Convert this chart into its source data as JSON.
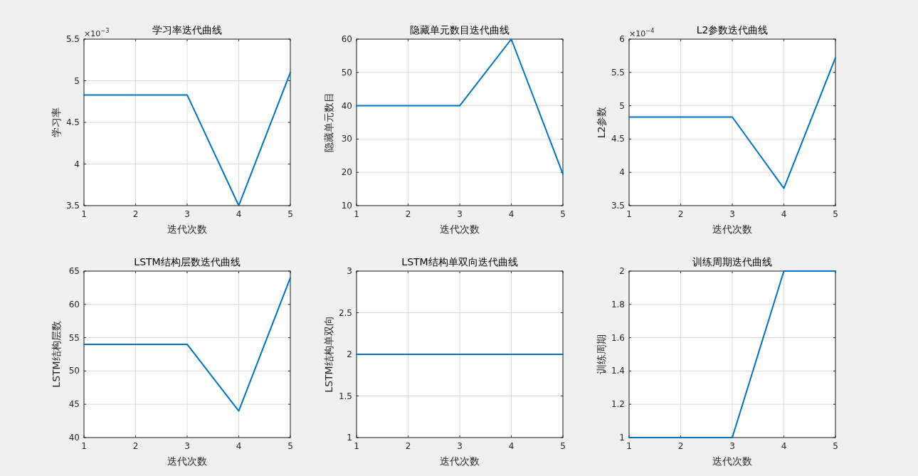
{
  "chart_data": [
    {
      "type": "line",
      "title": "学习率迭代曲线",
      "xlabel": "迭代次数",
      "ylabel": "学习率",
      "x": [
        1,
        2,
        3,
        4,
        5
      ],
      "series": [
        {
          "color": "#0072bd",
          "values": [
            4.83,
            4.83,
            4.83,
            3.5,
            5.1
          ]
        }
      ],
      "xlim": [
        1,
        5
      ],
      "xticks": [
        1,
        2,
        3,
        4,
        5
      ],
      "ylim": [
        3.5,
        5.5
      ],
      "yticks": [
        3.5,
        4,
        4.5,
        5,
        5.5
      ],
      "annotations": [
        "×10$^{−3}$"
      ],
      "grid": true
    },
    {
      "type": "line",
      "title": "隐藏单元数目迭代曲线",
      "xlabel": "迭代次数",
      "ylabel": "隐藏单元数目",
      "x": [
        1,
        2,
        3,
        4,
        5
      ],
      "series": [
        {
          "color": "#0072bd",
          "values": [
            40,
            40,
            40,
            60,
            19.5
          ]
        }
      ],
      "xlim": [
        1,
        5
      ],
      "xticks": [
        1,
        2,
        3,
        4,
        5
      ],
      "ylim": [
        10,
        60
      ],
      "yticks": [
        10,
        20,
        30,
        40,
        50,
        60
      ],
      "grid": true
    },
    {
      "type": "line",
      "title": "L2参数迭代曲线",
      "xlabel": "迭代次数",
      "ylabel": "L2参数",
      "x": [
        1,
        2,
        3,
        4,
        5
      ],
      "series": [
        {
          "color": "#0072bd",
          "values": [
            4.83,
            4.83,
            4.83,
            3.76,
            5.72
          ]
        }
      ],
      "xlim": [
        1,
        5
      ],
      "xticks": [
        1,
        2,
        3,
        4,
        5
      ],
      "ylim": [
        3.5,
        6
      ],
      "yticks": [
        3.5,
        4,
        4.5,
        5,
        5.5,
        6
      ],
      "annotations": [
        "×10$^{−4}$"
      ],
      "grid": true
    },
    {
      "type": "line",
      "title": "LSTM结构层数迭代曲线",
      "xlabel": "迭代次数",
      "ylabel": "LSTM结构层数",
      "x": [
        1,
        2,
        3,
        4,
        5
      ],
      "series": [
        {
          "color": "#0072bd",
          "values": [
            54,
            54,
            54,
            44,
            64
          ]
        }
      ],
      "xlim": [
        1,
        5
      ],
      "xticks": [
        1,
        2,
        3,
        4,
        5
      ],
      "ylim": [
        40,
        65
      ],
      "yticks": [
        40,
        45,
        50,
        55,
        60,
        65
      ],
      "grid": true
    },
    {
      "type": "line",
      "title": "LSTM结构单双向迭代曲线",
      "xlabel": "迭代次数",
      "ylabel": "LSTM结构单双向",
      "x": [
        1,
        2,
        3,
        4,
        5
      ],
      "series": [
        {
          "color": "#0072bd",
          "values": [
            2,
            2,
            2,
            2,
            2
          ]
        }
      ],
      "xlim": [
        1,
        5
      ],
      "xticks": [
        1,
        2,
        3,
        4,
        5
      ],
      "ylim": [
        1,
        3
      ],
      "yticks": [
        1,
        1.5,
        2,
        2.5,
        3
      ],
      "grid": true
    },
    {
      "type": "line",
      "title": "训练周期迭代曲线",
      "xlabel": "迭代次数",
      "ylabel": "训练周期",
      "x": [
        1,
        2,
        3,
        4,
        5
      ],
      "series": [
        {
          "color": "#0072bd",
          "values": [
            1,
            1,
            1,
            2,
            2
          ]
        }
      ],
      "xlim": [
        1,
        5
      ],
      "xticks": [
        1,
        2,
        3,
        4,
        5
      ],
      "ylim": [
        1,
        2
      ],
      "yticks": [
        1,
        1.2,
        1.4,
        1.6,
        1.8,
        2
      ],
      "grid": true
    }
  ]
}
